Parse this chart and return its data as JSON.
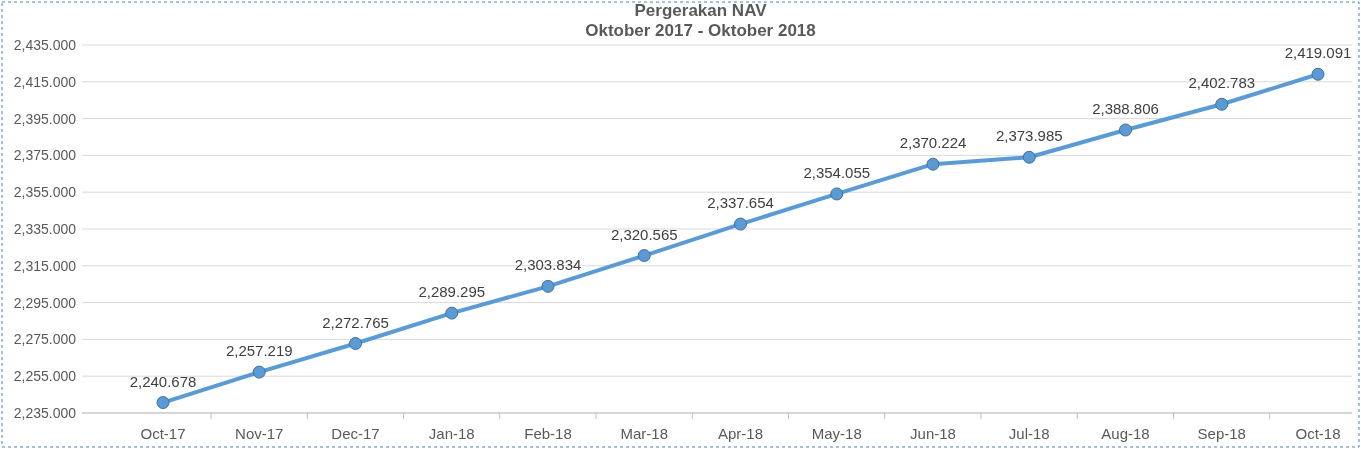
{
  "chart_data": {
    "type": "line",
    "title": "Pergerakan NAV",
    "subtitle": "Oktober 2017 - Oktober 2018",
    "categories": [
      "Oct-17",
      "Nov-17",
      "Dec-17",
      "Jan-18",
      "Feb-18",
      "Mar-18",
      "Apr-18",
      "May-18",
      "Jun-18",
      "Jul-18",
      "Aug-18",
      "Sep-18",
      "Oct-18"
    ],
    "series": [
      {
        "color": "#5b9bd5",
        "values": [
          2240.678,
          2257.219,
          2272.765,
          2289.295,
          2303.834,
          2320.565,
          2337.654,
          2354.055,
          2370.224,
          2373.985,
          2388.806,
          2402.783,
          2419.091
        ],
        "value_labels": [
          "2,240.678",
          "2,257.219",
          "2,272.765",
          "2,289.295",
          "2,303.834",
          "2,320.565",
          "2,337.654",
          "2,354.055",
          "2,370.224",
          "2,373.985",
          "2,388.806",
          "2,402.783",
          "2,419.091"
        ]
      }
    ],
    "ylim": [
      2235,
      2435
    ],
    "yticks": [
      {
        "value": 2235,
        "label": "2,235.000"
      },
      {
        "value": 2255,
        "label": "2,255.000"
      },
      {
        "value": 2275,
        "label": "2,275.000"
      },
      {
        "value": 2295,
        "label": "2,295.000"
      },
      {
        "value": 2315,
        "label": "2,315.000"
      },
      {
        "value": 2335,
        "label": "2,335.000"
      },
      {
        "value": 2355,
        "label": "2,355.000"
      },
      {
        "value": 2375,
        "label": "2,375.000"
      },
      {
        "value": 2395,
        "label": "2,395.000"
      },
      {
        "value": 2415,
        "label": "2,415.000"
      },
      {
        "value": 2435,
        "label": "2,435.000"
      }
    ],
    "grid": "y",
    "marker": "circle",
    "line_style": "solid"
  }
}
